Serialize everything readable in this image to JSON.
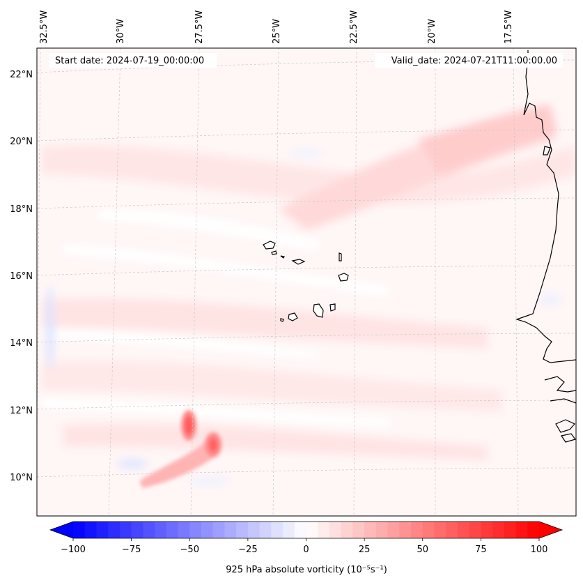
{
  "map": {
    "start_date": "Start date: 2024-07-19_00:00:00",
    "valid_date": "Valid_date: 2024-07-21T11:00:00.00",
    "lon_ticks": [
      "32.5°W",
      "30°W",
      "27.5°W",
      "25°W",
      "22.5°W",
      "20°W",
      "17.5°W"
    ],
    "lat_ticks": [
      "22°N",
      "20°N",
      "18°N",
      "16°N",
      "14°N",
      "12°N",
      "10°N"
    ],
    "features": [
      "cape-verde-islands",
      "west-africa-coastline",
      "vorticity-maximum"
    ]
  },
  "colorbar": {
    "label": "925 hPa absolute vorticity (10⁻⁵s⁻¹)",
    "ticks": [
      "−100",
      "−75",
      "−50",
      "−25",
      "0",
      "25",
      "50",
      "75",
      "100"
    ],
    "min": -100,
    "max": 100,
    "colors": {
      "negative": "#0000ff",
      "neutral": "#ffffff",
      "positive": "#ff0000"
    }
  }
}
